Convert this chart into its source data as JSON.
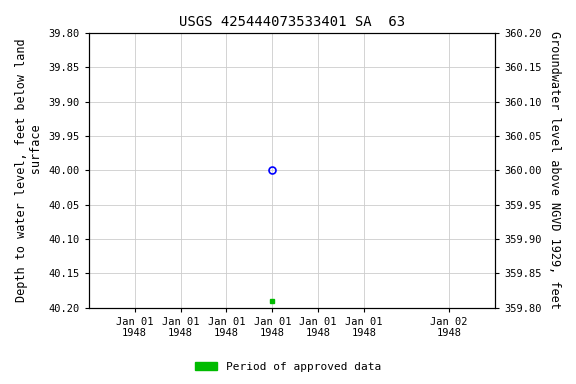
{
  "title": "USGS 425444073533401 SA  63",
  "ylabel_left": "Depth to water level, feet below land\n      surface",
  "ylabel_right": "Groundwater level above NGVD 1929, feet",
  "ylim_left": [
    39.8,
    40.2
  ],
  "ylim_right": [
    359.8,
    360.2
  ],
  "yticks_left": [
    39.8,
    39.85,
    39.9,
    39.95,
    40.0,
    40.05,
    40.1,
    40.15,
    40.2
  ],
  "yticks_right": [
    359.8,
    359.85,
    359.9,
    359.95,
    360.0,
    360.05,
    360.1,
    360.15,
    360.2
  ],
  "point_blue_value": 40.0,
  "point_green_value": 40.19,
  "bg_color": "#ffffff",
  "grid_color": "#cccccc",
  "font_family": "DejaVu Sans Mono",
  "title_fontsize": 10,
  "tick_fontsize": 7.5,
  "label_fontsize": 8.5,
  "legend_label": "Period of approved data",
  "legend_color": "#00bb00",
  "xlim_hours_start": -3.5,
  "xlim_hours_end": 27.5,
  "tick_hours": [
    -0.0,
    3.5,
    7.0,
    10.5,
    14.0,
    17.5,
    24.0
  ],
  "tick_labels": [
    "Jan 01\n1948",
    "Jan 01\n1948",
    "Jan 01\n1948",
    "Jan 01\n1948",
    "Jan 01\n1948",
    "Jan 01\n1948",
    "Jan 02\n1948"
  ],
  "point_blue_hour": 10.5,
  "point_green_hour": 10.5
}
